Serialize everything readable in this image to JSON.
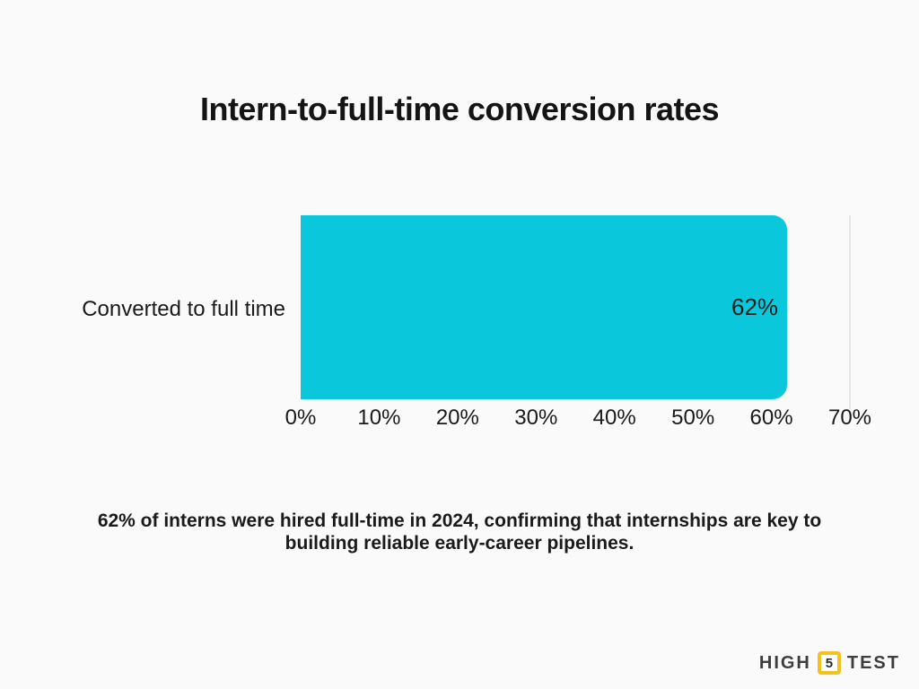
{
  "title": "Intern-to-full-time conversion rates",
  "chart_data": {
    "type": "bar",
    "orientation": "horizontal",
    "title": "Intern-to-full-time conversion rates",
    "categories": [
      "Converted to full time"
    ],
    "values": [
      62
    ],
    "value_labels": [
      "62%"
    ],
    "xlim": [
      0,
      70
    ],
    "x_ticks": [
      "0%",
      "10%",
      "20%",
      "30%",
      "40%",
      "50%",
      "60%",
      "70%"
    ],
    "xlabel": "",
    "ylabel": "",
    "legend": "none",
    "grid": "single faint vertical line at 70%",
    "bar_color": "#0bc7dc",
    "value_label_color": "#1a1a1a"
  },
  "caption": {
    "lines": [
      "62% of interns were hired full-time in 2024, confirming that internships are key to",
      "building reliable early-career pipelines."
    ]
  },
  "logo": {
    "word1": "HIGH",
    "number": "5",
    "word2": "TEST",
    "accent_color": "#f2c21e",
    "text_color": "#3d3d3d"
  },
  "colors": {
    "background": "#fafafa",
    "text": "#1a1a1a",
    "gridline": "#e7e7e7"
  }
}
